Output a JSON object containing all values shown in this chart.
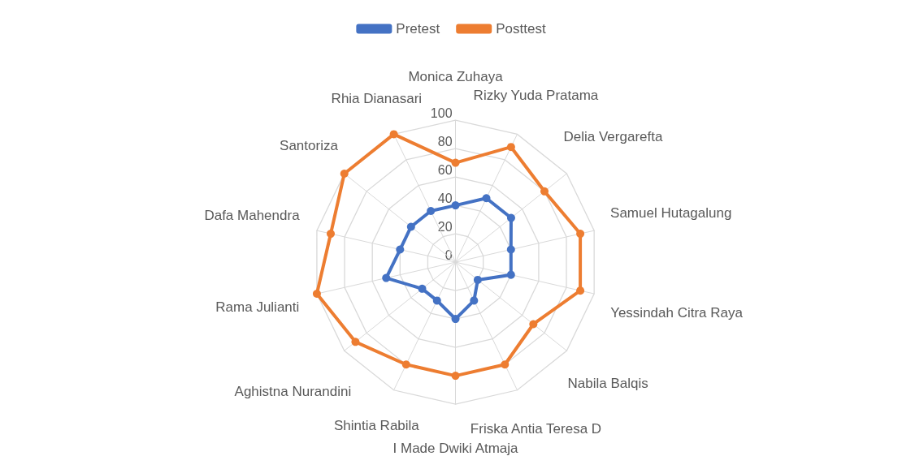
{
  "chart_data": {
    "type": "radar",
    "categories": [
      "Monica Zuhaya",
      "Rizky Yuda Pratama",
      "Delia Vergarefta",
      "Samuel Hutagalung",
      "Yessindah Citra Raya",
      "Nabila Balqis",
      "Friska Antia Teresa D",
      "I Made Dwiki Atmaja",
      "Shintia Rabila",
      "Aghistna Nurandini",
      "Rama Julianti",
      "Dafa Mahendra",
      "Santoriza",
      "Rhia Dianasari"
    ],
    "series": [
      {
        "name": "Pretest",
        "color": "#4472c4",
        "values": [
          40,
          50,
          50,
          40,
          40,
          20,
          30,
          40,
          30,
          30,
          50,
          40,
          40,
          40
        ]
      },
      {
        "name": "Posttest",
        "color": "#ed7d31",
        "values": [
          70,
          90,
          80,
          90,
          90,
          70,
          80,
          80,
          80,
          90,
          100,
          90,
          100,
          100
        ]
      }
    ],
    "ylim": [
      0,
      100
    ],
    "yticks": [
      0,
      20,
      40,
      60,
      80,
      100
    ],
    "grid": true,
    "legend": "top",
    "marker": "circle",
    "line_style": "solid"
  }
}
